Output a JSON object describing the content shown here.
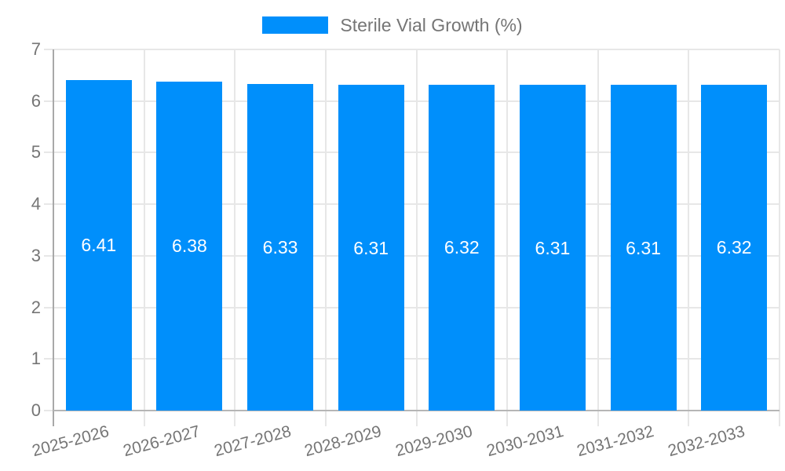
{
  "chart_data": {
    "type": "bar",
    "title": "",
    "legend": [
      {
        "label": "Sterile Vial Growth (%)",
        "color": "#008FFB"
      }
    ],
    "legend_position": "top",
    "categories": [
      "2025-2026",
      "2026-2027",
      "2027-2028",
      "2028-2029",
      "2029-2030",
      "2030-2031",
      "2031-2032",
      "2032-2033"
    ],
    "series": [
      {
        "name": "Sterile Vial Growth (%)",
        "values": [
          6.41,
          6.38,
          6.33,
          6.31,
          6.32,
          6.31,
          6.31,
          6.32
        ],
        "data_labels": [
          "6.41",
          "6.38",
          "6.33",
          "6.31",
          "6.32",
          "6.31",
          "6.31",
          "6.32"
        ]
      }
    ],
    "xlabel": "",
    "ylabel": "",
    "ylim": [
      0,
      7
    ],
    "ytick_step": 1,
    "ytick_labels": [
      "0",
      "1",
      "2",
      "3",
      "4",
      "5",
      "6",
      "7"
    ],
    "grid": true,
    "colors": {
      "bar": "#008FFB",
      "bar_label_text": "#ffffff",
      "axis_text": "#757575",
      "gridline": "#e7e7e7",
      "y_axis_line": "#a8a8a8",
      "baseline": "#b6b6b6",
      "background": "#ffffff"
    }
  }
}
